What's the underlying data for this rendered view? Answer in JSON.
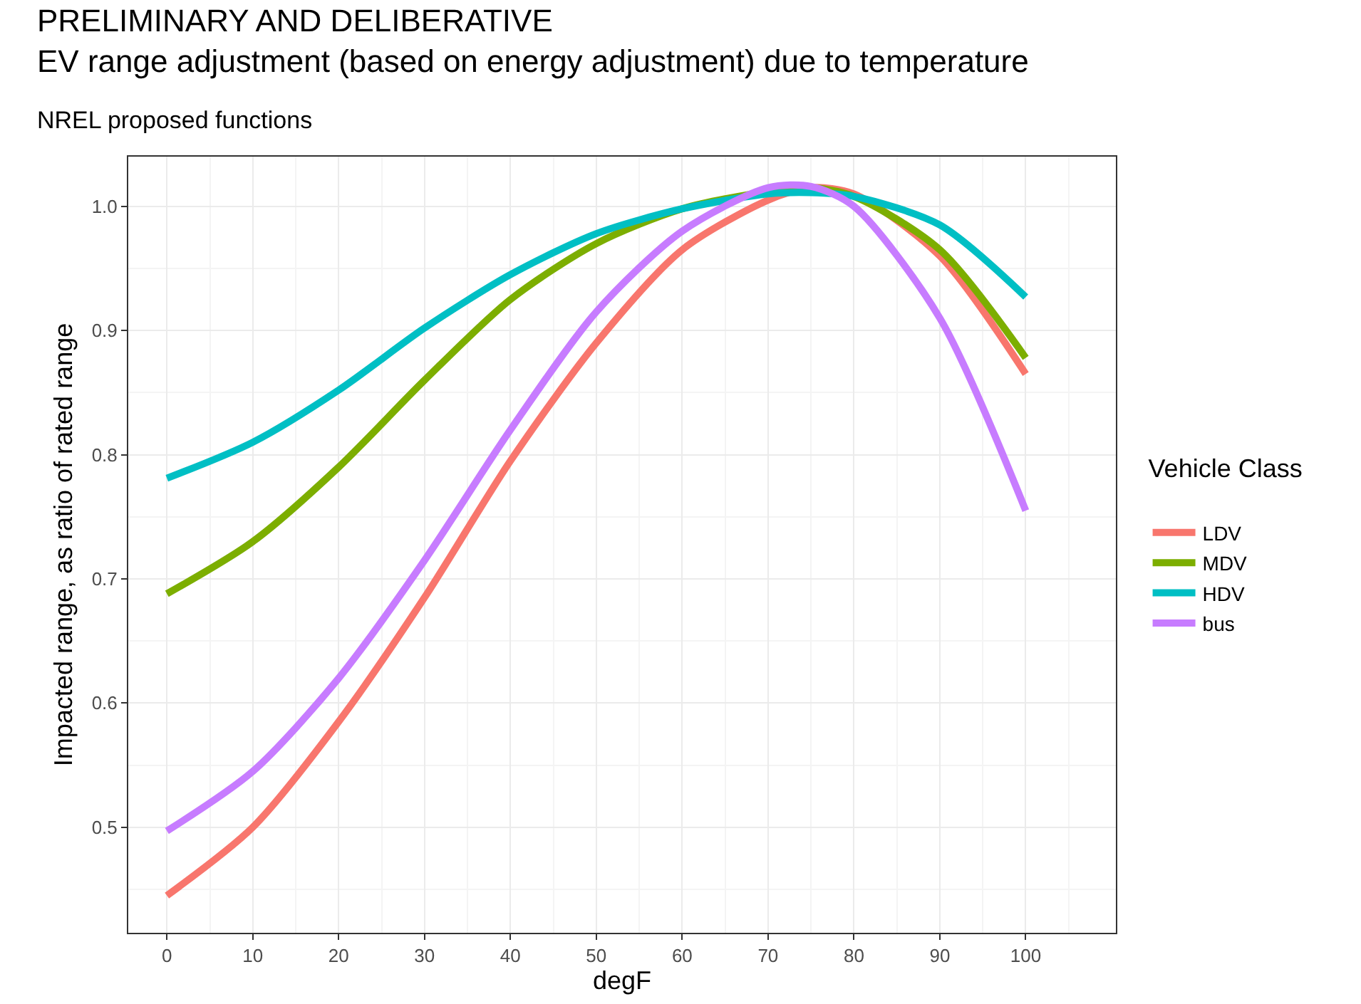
{
  "chart_data": {
    "type": "line",
    "title": "PRELIMINARY AND DELIBERATIVE\nEV range adjustment (based on energy adjustment) due to temperature",
    "subtitle": "NREL proposed functions",
    "xlabel": "degF",
    "ylabel": "Impacted range, as ratio of rated range",
    "legend_title": "Vehicle Class",
    "x": [
      0,
      10,
      20,
      30,
      40,
      50,
      60,
      70,
      75,
      80,
      90,
      100
    ],
    "series": [
      {
        "name": "LDV",
        "color": "#f8766d",
        "values": [
          0.445,
          0.5,
          0.585,
          0.685,
          0.795,
          0.89,
          0.965,
          1.005,
          1.015,
          1.01,
          0.96,
          0.865
        ]
      },
      {
        "name": "MDV",
        "color": "#7cae00",
        "values": [
          0.688,
          0.73,
          0.79,
          0.86,
          0.925,
          0.97,
          0.998,
          1.012,
          1.015,
          1.008,
          0.965,
          0.878
        ]
      },
      {
        "name": "HDV",
        "color": "#00bfc4",
        "values": [
          0.781,
          0.81,
          0.852,
          0.902,
          0.945,
          0.978,
          0.998,
          1.01,
          1.011,
          1.008,
          0.985,
          0.927
        ]
      },
      {
        "name": "bus",
        "color": "#c77cff",
        "values": [
          0.497,
          0.545,
          0.62,
          0.715,
          0.82,
          0.915,
          0.98,
          1.015,
          1.016,
          1.0,
          0.91,
          0.755
        ]
      }
    ],
    "xlim": [
      -4.5,
      110.5
    ],
    "ylim": [
      0.415,
      1.04
    ],
    "xticks": [
      0,
      10,
      20,
      30,
      40,
      50,
      60,
      70,
      80,
      90,
      100
    ],
    "yticks": [
      {
        "value": 0.5,
        "label": "0.5"
      },
      {
        "value": 0.6,
        "label": "0.6"
      },
      {
        "value": 0.7,
        "label": "0.7"
      },
      {
        "value": 0.8,
        "label": "0.8"
      },
      {
        "value": 0.9,
        "label": "0.9"
      },
      {
        "value": 1.0,
        "label": "1.0"
      }
    ],
    "grid": true,
    "legend": "right",
    "marker": "none",
    "line_style": "solid"
  }
}
